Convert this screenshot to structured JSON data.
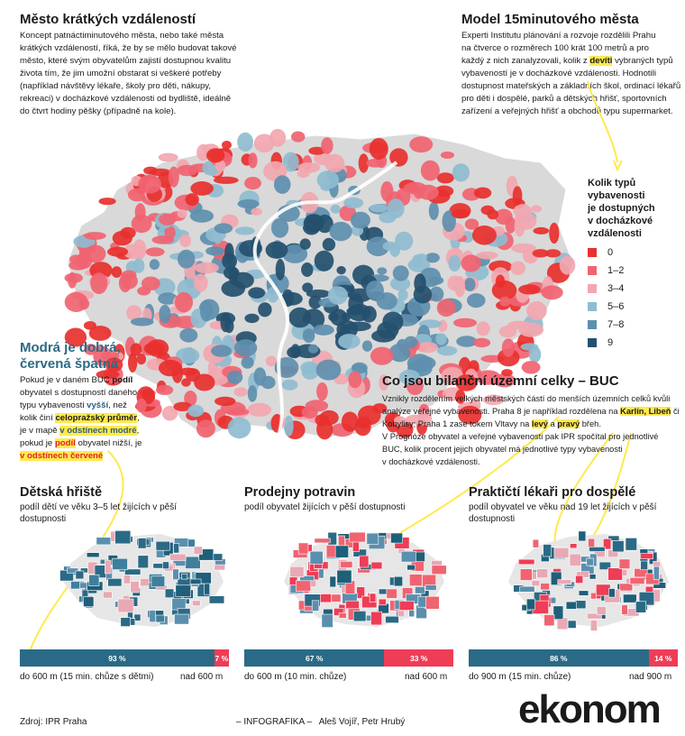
{
  "intro": {
    "title": "Město krátkých vzdáleností",
    "lines": [
      "Koncept patnáctiminutového města, nebo také města",
      "krátkých vzdáleností, říká, že by se mělo budovat takové",
      "město, které svým obyvatelům zajistí dostupnou kvalitu",
      "života tím, že jim umožní obstarat si veškeré potřeby",
      "(například návštěvy lékaře, školy pro děti, nákupy,",
      "rekreaci) v docházkové vzdálenosti od bydliště, ideálně",
      "do čtvrt hodiny pěšky (případně na kole)."
    ]
  },
  "model": {
    "title": "Model 15minutového města",
    "line1": "Experti Institutu plánování a rozvoje rozdělili Prahu",
    "line2": "na čtverce o rozměrech 100 krát 100 metrů a pro",
    "line3_pre": "každý z nich zanalyzovali, kolik z ",
    "line3_hl": "devíti",
    "line3_post": " vybraných typů",
    "line4": "vybaveností je v docházkové vzdálenosti. Hodnotili",
    "line5": "dostupnost mateřských a základních škol, ordinací lékařů",
    "line6": "pro děti i dospělé, parků a dětských hřišť, sportovních",
    "line7": "zařízení a veřejných hřišť a obchodů typu supermarket."
  },
  "legend": {
    "title_lines": [
      "Kolik typů",
      "vybavenosti",
      "je dostupných",
      "v docházkové",
      "vzdálenosti"
    ],
    "items": [
      {
        "label": "0",
        "color": "#e8302e"
      },
      {
        "label": "1–2",
        "color": "#f06471"
      },
      {
        "label": "3–4",
        "color": "#f2a7b0"
      },
      {
        "label": "5–6",
        "color": "#8fbcd0"
      },
      {
        "label": "7–8",
        "color": "#5e8fae"
      },
      {
        "label": "9",
        "color": "#24506e"
      }
    ]
  },
  "explain": {
    "title1": "Modrá je dobrá,",
    "title2": "červená špatná",
    "l1_pre": "Pokud je v daném BUC ",
    "l1_hl": "podíl",
    "l2": "obyvatel s dostupností daného",
    "l3_pre": "typu vybavenosti ",
    "l3_hl": "vyšší",
    "l3_post": ", než",
    "l4_pre": "kolik činí ",
    "l4_hl": "celopražský průměr",
    "l4_post": ",",
    "l5_pre": "je v mapě ",
    "l5_hl": "v odstínech modré",
    "l5_post": ",",
    "l6_pre": "pokud je ",
    "l6_hl": "podíl",
    "l6_post": " obyvatel nižší, je",
    "l7_hl": "v odstínech červené"
  },
  "buc": {
    "title": "Co jsou bilanční územní celky – BUC",
    "l1": "Vznikly rozdělením velkých městských částí do menších územních celků kvůli",
    "l2_pre": "analýze veřejné vybavenosti. Praha 8 je například rozdělena na ",
    "l2_hl": "Karlín, Libeň",
    "l2_post": " či",
    "l3_pre": "Kobylisy; Praha 1 zase tokem Vltavy na ",
    "l3_hl1": "levý",
    "l3_mid": " a ",
    "l3_hl2": "pravý",
    "l3_post": " břeh.",
    "l4": "V Prognóze obyvatel a veřejné vybavenosti pak IPR spočítal pro jednotlivé",
    "l5": "BUC, kolik procent jejich obyvatel má jednotlivé typy vybavenosti",
    "l6": "v docházkové vzdálenosti."
  },
  "panels": [
    {
      "title": "Dětská hřiště",
      "sub1": "podíl dětí ve věku 3–5 let žijících v pěší",
      "sub2": "dostupnosti",
      "good_pct": "93 %",
      "bad_pct": "7 %",
      "good_value": 93,
      "left_label": "do 600 m (15 min. chůze s dětmi)",
      "right_label": "nad 600 m"
    },
    {
      "title": "Prodejny potravin",
      "sub1": "podíl obyvatel žijících v pěší dostupnosti",
      "sub2": "",
      "good_pct": "67 %",
      "bad_pct": "33 %",
      "good_value": 67,
      "left_label": "do 600 m (10 min. chůze)",
      "right_label": "nad 600 m"
    },
    {
      "title": "Praktičtí lékaři pro dospělé",
      "sub1": "podíl obyvatel ve věku nad 19 let žijících v pěší",
      "sub2": "dostupnosti",
      "good_pct": "86 %",
      "bad_pct": "14 %",
      "good_value": 86,
      "left_label": "do 900 m (15 min. chůze)",
      "right_label": "nad 900 m"
    }
  ],
  "colors": {
    "good": "#2b6a86",
    "bad": "#ee3d57",
    "highlight": "#ffe94d",
    "land": "#d9d9d9"
  },
  "footer": {
    "source": "Zdroj: IPR Praha",
    "credit": "– INFOGRAFIKA –   Aleš Vojíř, Petr Hrubý",
    "brand": "ekonom"
  }
}
